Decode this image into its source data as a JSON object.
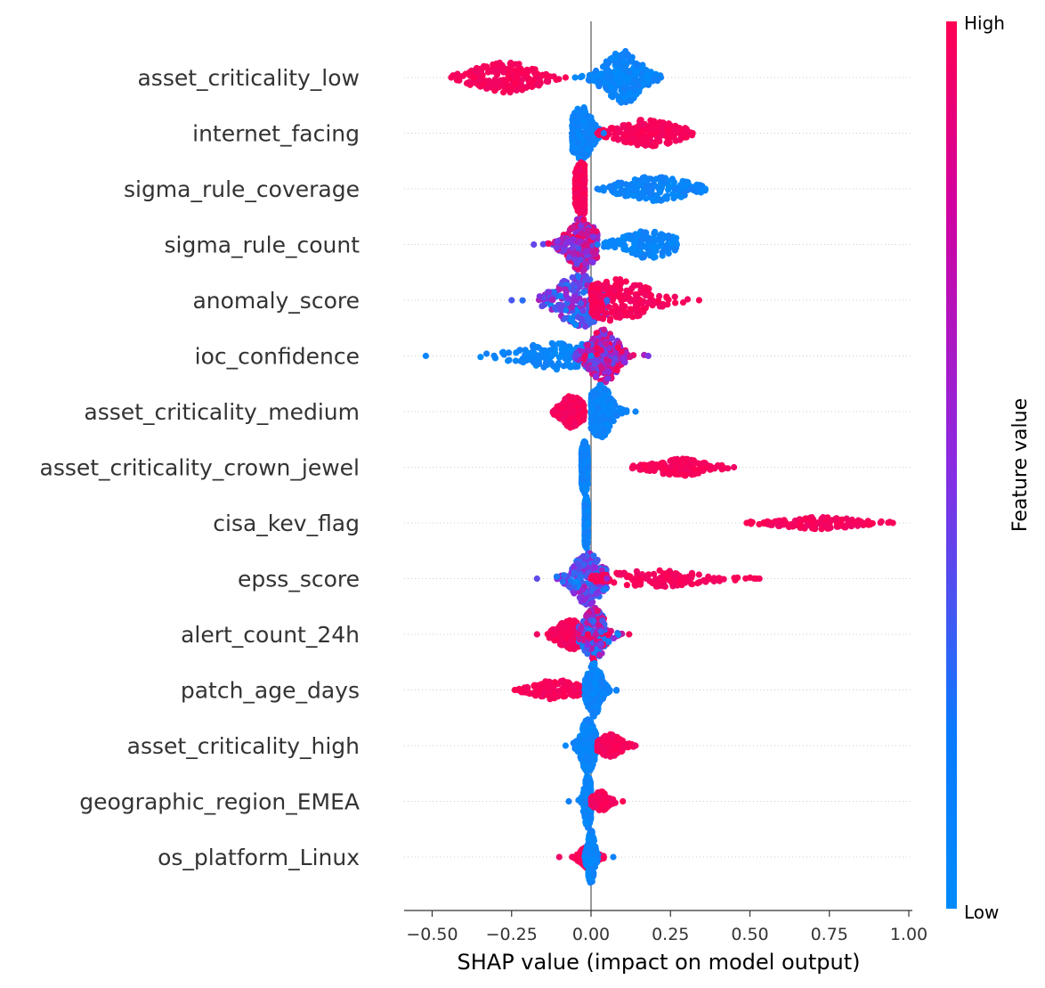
{
  "chart_data": {
    "type": "scatter",
    "subtype": "shap-beeswarm",
    "xlabel": "SHAP value (impact on model output)",
    "xlim": [
      -0.58,
      1.0
    ],
    "xticks": [
      -0.5,
      -0.25,
      0.0,
      0.25,
      0.5,
      0.75,
      1.0
    ],
    "xtick_labels": [
      "−0.50",
      "−0.25",
      "0.00",
      "0.25",
      "0.50",
      "0.75",
      "1.00"
    ],
    "colorbar": {
      "title": "Feature value",
      "high_label": "High",
      "low_label": "Low",
      "high_color": "#ff0052",
      "mid_color": "#8a2be2",
      "low_color": "#008bfb"
    },
    "zero_line_color": "#999999",
    "features": [
      {
        "name": "asset_criticality_low",
        "clusters": [
          {
            "min": -0.44,
            "max": -0.08,
            "center": -0.27,
            "width": 0.09,
            "value": "high",
            "spread": 0.55
          },
          {
            "min": -0.05,
            "max": 0.22,
            "center": 0.1,
            "width": 0.05,
            "value": "low",
            "spread": 1.0
          }
        ]
      },
      {
        "name": "internet_facing",
        "clusters": [
          {
            "min": -0.06,
            "max": 0.04,
            "center": -0.03,
            "width": 0.03,
            "value": "low",
            "spread": 1.0
          },
          {
            "min": 0.02,
            "max": 0.32,
            "center": 0.18,
            "width": 0.08,
            "value": "high",
            "spread": 0.5
          }
        ]
      },
      {
        "name": "sigma_rule_coverage",
        "clusters": [
          {
            "min": -0.05,
            "max": -0.02,
            "center": -0.03,
            "width": 0.02,
            "value": "high",
            "spread": 1.0
          },
          {
            "min": 0.02,
            "max": 0.36,
            "center": 0.2,
            "width": 0.09,
            "value": "low",
            "spread": 0.45
          }
        ]
      },
      {
        "name": "sigma_rule_count",
        "clusters": [
          {
            "min": -0.18,
            "max": 0.02,
            "center": -0.03,
            "width": 0.04,
            "value": "mixed-high",
            "spread": 1.0
          },
          {
            "min": 0.02,
            "max": 0.27,
            "center": 0.18,
            "width": 0.07,
            "value": "low",
            "spread": 0.5
          }
        ]
      },
      {
        "name": "anomaly_score",
        "clusters": [
          {
            "min": -0.25,
            "max": 0.05,
            "center": -0.03,
            "width": 0.07,
            "value": "mixed-low",
            "spread": 1.0
          },
          {
            "min": 0.0,
            "max": 0.34,
            "center": 0.08,
            "width": 0.09,
            "value": "high",
            "spread": 0.8
          }
        ]
      },
      {
        "name": "ioc_confidence",
        "clusters": [
          {
            "min": -0.52,
            "max": 0.0,
            "center": -0.08,
            "width": 0.12,
            "value": "low",
            "spread": 0.55
          },
          {
            "min": -0.05,
            "max": 0.18,
            "center": 0.04,
            "width": 0.04,
            "value": "mixed-high",
            "spread": 1.0
          }
        ]
      },
      {
        "name": "asset_criticality_medium",
        "clusters": [
          {
            "min": -0.12,
            "max": -0.02,
            "center": -0.06,
            "width": 0.03,
            "value": "high",
            "spread": 0.6
          },
          {
            "min": 0.0,
            "max": 0.14,
            "center": 0.03,
            "width": 0.03,
            "value": "low",
            "spread": 1.0
          }
        ]
      },
      {
        "name": "asset_criticality_crown_jewel",
        "clusters": [
          {
            "min": -0.03,
            "max": -0.01,
            "center": -0.02,
            "width": 0.01,
            "value": "low",
            "spread": 1.0
          },
          {
            "min": 0.13,
            "max": 0.45,
            "center": 0.28,
            "width": 0.07,
            "value": "high",
            "spread": 0.3
          }
        ]
      },
      {
        "name": "cisa_kev_flag",
        "clusters": [
          {
            "min": -0.02,
            "max": -0.01,
            "center": -0.015,
            "width": 0.006,
            "value": "low",
            "spread": 1.0
          },
          {
            "min": 0.49,
            "max": 0.95,
            "center": 0.72,
            "width": 0.1,
            "value": "high",
            "spread": 0.2
          }
        ]
      },
      {
        "name": "epss_score",
        "clusters": [
          {
            "min": -0.17,
            "max": 0.05,
            "center": -0.01,
            "width": 0.04,
            "value": "mixed-low",
            "spread": 1.0
          },
          {
            "min": 0.0,
            "max": 0.53,
            "center": 0.2,
            "width": 0.12,
            "value": "high",
            "spread": 0.3
          }
        ]
      },
      {
        "name": "alert_count_24h",
        "clusters": [
          {
            "min": -0.17,
            "max": -0.01,
            "center": -0.06,
            "width": 0.04,
            "value": "high",
            "spread": 0.55
          },
          {
            "min": -0.04,
            "max": 0.12,
            "center": 0.01,
            "width": 0.03,
            "value": "mixed",
            "spread": 1.0
          }
        ]
      },
      {
        "name": "patch_age_days",
        "clusters": [
          {
            "min": -0.24,
            "max": -0.02,
            "center": -0.11,
            "width": 0.06,
            "value": "high",
            "spread": 0.35
          },
          {
            "min": -0.02,
            "max": 0.08,
            "center": 0.01,
            "width": 0.02,
            "value": "low",
            "spread": 1.0
          }
        ]
      },
      {
        "name": "asset_criticality_high",
        "clusters": [
          {
            "min": -0.08,
            "max": 0.02,
            "center": -0.01,
            "width": 0.02,
            "value": "low",
            "spread": 1.0
          },
          {
            "min": 0.02,
            "max": 0.14,
            "center": 0.06,
            "width": 0.03,
            "value": "high",
            "spread": 0.4
          }
        ]
      },
      {
        "name": "geographic_region_EMEA",
        "clusters": [
          {
            "min": -0.07,
            "max": 0.0,
            "center": -0.01,
            "width": 0.01,
            "value": "low",
            "spread": 1.0
          },
          {
            "min": 0.0,
            "max": 0.1,
            "center": 0.03,
            "width": 0.02,
            "value": "high",
            "spread": 0.35
          }
        ]
      },
      {
        "name": "os_platform_Linux",
        "clusters": [
          {
            "min": -0.1,
            "max": 0.04,
            "center": -0.01,
            "width": 0.02,
            "value": "high",
            "spread": 0.4
          },
          {
            "min": -0.02,
            "max": 0.07,
            "center": 0.0,
            "width": 0.01,
            "value": "low",
            "spread": 1.0
          }
        ]
      }
    ]
  }
}
